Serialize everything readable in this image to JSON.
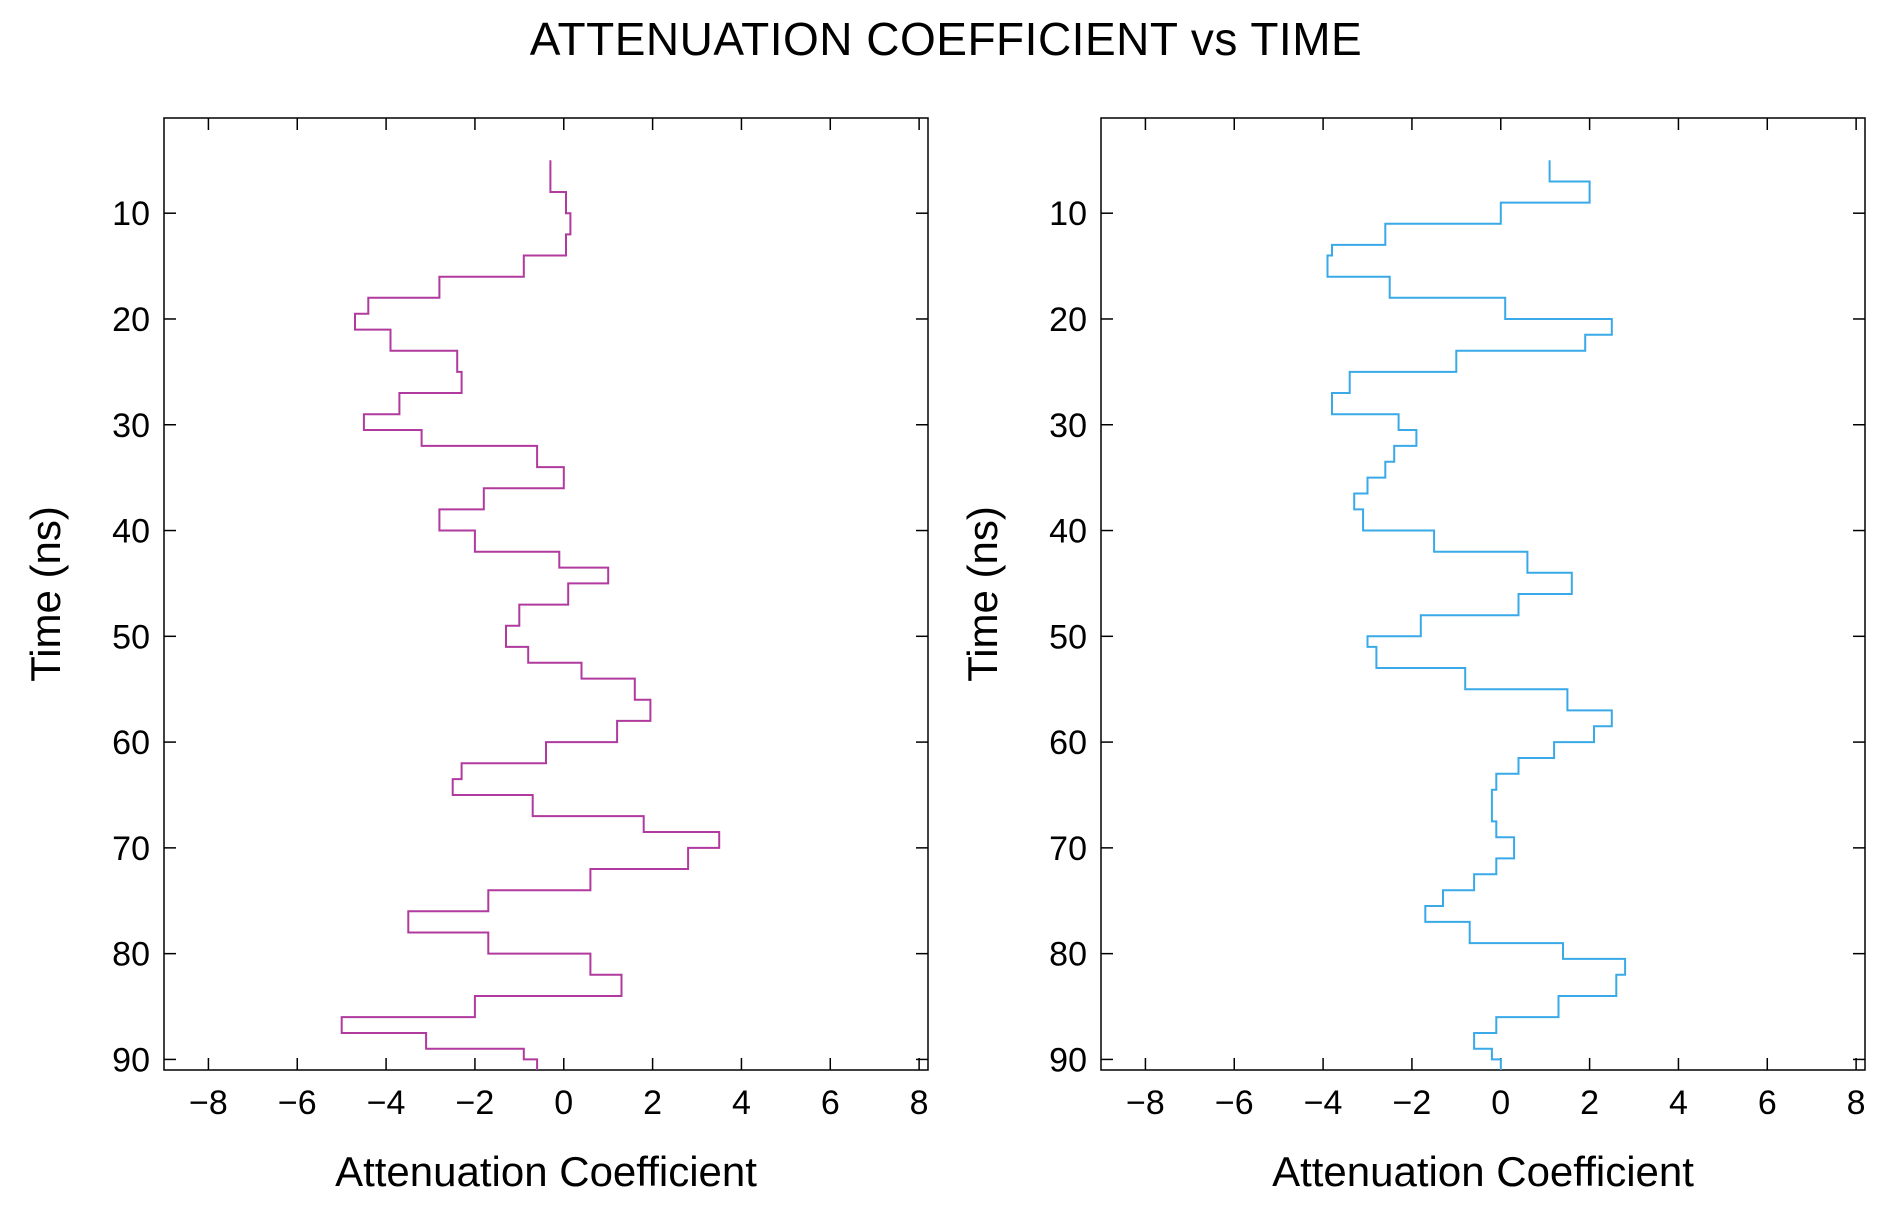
{
  "figure_title": "ATTENUATION COEFFICIENT vs TIME",
  "colors": {
    "left_series": "#b03a9e",
    "right_series": "#39a9e8",
    "axis": "#000000"
  },
  "chart_data": [
    {
      "type": "line",
      "style": "step",
      "xlabel": "Attenuation Coefficient",
      "ylabel": "Time (ns)",
      "xlim": [
        -9,
        8.2
      ],
      "ylim": [
        91,
        1
      ],
      "y_inverted": true,
      "xticks": [
        -8,
        -6,
        -4,
        -2,
        0,
        2,
        4,
        6,
        8
      ],
      "xtick_labels": [
        "−8",
        "−6",
        "−4",
        "−2",
        "0",
        "2",
        "4",
        "6",
        "8"
      ],
      "yticks": [
        10,
        20,
        30,
        40,
        50,
        60,
        70,
        80,
        90
      ],
      "ytick_labels": [
        "10",
        "20",
        "30",
        "40",
        "50",
        "60",
        "70",
        "80",
        "90"
      ],
      "series": [
        {
          "name": "left",
          "color_key": "left_series",
          "points": [
            [
              -0.3,
              5
            ],
            [
              -0.3,
              8
            ],
            [
              0.05,
              8
            ],
            [
              0.05,
              10
            ],
            [
              0.15,
              10
            ],
            [
              0.15,
              12
            ],
            [
              0.05,
              12
            ],
            [
              0.05,
              14
            ],
            [
              -0.9,
              14
            ],
            [
              -0.9,
              16
            ],
            [
              -2.8,
              16
            ],
            [
              -2.8,
              18
            ],
            [
              -4.4,
              18
            ],
            [
              -4.4,
              19.5
            ],
            [
              -4.7,
              19.5
            ],
            [
              -4.7,
              21
            ],
            [
              -3.9,
              21
            ],
            [
              -3.9,
              23
            ],
            [
              -2.4,
              23
            ],
            [
              -2.4,
              25
            ],
            [
              -2.3,
              25
            ],
            [
              -2.3,
              27
            ],
            [
              -3.7,
              27
            ],
            [
              -3.7,
              29
            ],
            [
              -4.5,
              29
            ],
            [
              -4.5,
              30.5
            ],
            [
              -3.2,
              30.5
            ],
            [
              -3.2,
              32
            ],
            [
              -0.6,
              32
            ],
            [
              -0.6,
              34
            ],
            [
              0,
              34
            ],
            [
              0,
              36
            ],
            [
              -1.8,
              36
            ],
            [
              -1.8,
              38
            ],
            [
              -2.8,
              38
            ],
            [
              -2.8,
              40
            ],
            [
              -2,
              40
            ],
            [
              -2,
              42
            ],
            [
              -0.1,
              42
            ],
            [
              -0.1,
              43.5
            ],
            [
              1,
              43.5
            ],
            [
              1,
              45
            ],
            [
              0.1,
              45
            ],
            [
              0.1,
              47
            ],
            [
              -1,
              47
            ],
            [
              -1,
              49
            ],
            [
              -1.3,
              49
            ],
            [
              -1.3,
              51
            ],
            [
              -0.8,
              51
            ],
            [
              -0.8,
              52.5
            ],
            [
              0.4,
              52.5
            ],
            [
              0.4,
              54
            ],
            [
              1.6,
              54
            ],
            [
              1.6,
              56
            ],
            [
              1.95,
              56
            ],
            [
              1.95,
              58
            ],
            [
              1.2,
              58
            ],
            [
              1.2,
              60
            ],
            [
              -0.4,
              60
            ],
            [
              -0.4,
              62
            ],
            [
              -2.3,
              62
            ],
            [
              -2.3,
              63.5
            ],
            [
              -2.5,
              63.5
            ],
            [
              -2.5,
              65
            ],
            [
              -0.7,
              65
            ],
            [
              -0.7,
              67
            ],
            [
              1.8,
              67
            ],
            [
              1.8,
              68.5
            ],
            [
              3.5,
              68.5
            ],
            [
              3.5,
              70
            ],
            [
              2.8,
              70
            ],
            [
              2.8,
              72
            ],
            [
              0.6,
              72
            ],
            [
              0.6,
              74
            ],
            [
              -1.7,
              74
            ],
            [
              -1.7,
              76
            ],
            [
              -3.5,
              76
            ],
            [
              -3.5,
              78
            ],
            [
              -1.7,
              78
            ],
            [
              -1.7,
              80
            ],
            [
              0.6,
              80
            ],
            [
              0.6,
              82
            ],
            [
              1.3,
              82
            ],
            [
              1.3,
              84
            ],
            [
              -2,
              84
            ],
            [
              -2,
              86
            ],
            [
              -5,
              86
            ],
            [
              -5,
              87.5
            ],
            [
              -3.1,
              87.5
            ],
            [
              -3.1,
              89
            ],
            [
              -0.9,
              89
            ],
            [
              -0.9,
              90
            ],
            [
              -0.6,
              90
            ],
            [
              -0.6,
              91
            ]
          ]
        }
      ]
    },
    {
      "type": "line",
      "style": "step",
      "xlabel": "Attenuation Coefficient",
      "ylabel": "Time (ns)",
      "xlim": [
        -9,
        8.2
      ],
      "ylim": [
        91,
        1
      ],
      "y_inverted": true,
      "xticks": [
        -8,
        -6,
        -4,
        -2,
        0,
        2,
        4,
        6,
        8
      ],
      "xtick_labels": [
        "−8",
        "−6",
        "−4",
        "−2",
        "0",
        "2",
        "4",
        "6",
        "8"
      ],
      "yticks": [
        10,
        20,
        30,
        40,
        50,
        60,
        70,
        80,
        90
      ],
      "ytick_labels": [
        "10",
        "20",
        "30",
        "40",
        "50",
        "60",
        "70",
        "80",
        "90"
      ],
      "series": [
        {
          "name": "right",
          "color_key": "right_series",
          "points": [
            [
              1.1,
              5
            ],
            [
              1.1,
              7
            ],
            [
              2,
              7
            ],
            [
              2,
              9
            ],
            [
              0,
              9
            ],
            [
              0,
              11
            ],
            [
              -2.6,
              11
            ],
            [
              -2.6,
              13
            ],
            [
              -3.8,
              13
            ],
            [
              -3.8,
              14
            ],
            [
              -3.9,
              14
            ],
            [
              -3.9,
              16
            ],
            [
              -2.5,
              16
            ],
            [
              -2.5,
              18
            ],
            [
              0.1,
              18
            ],
            [
              0.1,
              20
            ],
            [
              2.5,
              20
            ],
            [
              2.5,
              21.5
            ],
            [
              1.9,
              21.5
            ],
            [
              1.9,
              23
            ],
            [
              -1,
              23
            ],
            [
              -1,
              25
            ],
            [
              -3.4,
              25
            ],
            [
              -3.4,
              27
            ],
            [
              -3.8,
              27
            ],
            [
              -3.8,
              29
            ],
            [
              -2.3,
              29
            ],
            [
              -2.3,
              30.5
            ],
            [
              -1.9,
              30.5
            ],
            [
              -1.9,
              32
            ],
            [
              -2.4,
              32
            ],
            [
              -2.4,
              33.5
            ],
            [
              -2.6,
              33.5
            ],
            [
              -2.6,
              35
            ],
            [
              -3,
              35
            ],
            [
              -3,
              36.5
            ],
            [
              -3.3,
              36.5
            ],
            [
              -3.3,
              38
            ],
            [
              -3.1,
              38
            ],
            [
              -3.1,
              40
            ],
            [
              -1.5,
              40
            ],
            [
              -1.5,
              42
            ],
            [
              0.6,
              42
            ],
            [
              0.6,
              44
            ],
            [
              1.6,
              44
            ],
            [
              1.6,
              46
            ],
            [
              0.4,
              46
            ],
            [
              0.4,
              48
            ],
            [
              -1.8,
              48
            ],
            [
              -1.8,
              50
            ],
            [
              -3,
              50
            ],
            [
              -3,
              51
            ],
            [
              -2.8,
              51
            ],
            [
              -2.8,
              53
            ],
            [
              -0.8,
              53
            ],
            [
              -0.8,
              55
            ],
            [
              1.5,
              55
            ],
            [
              1.5,
              57
            ],
            [
              2.5,
              57
            ],
            [
              2.5,
              58.5
            ],
            [
              2.1,
              58.5
            ],
            [
              2.1,
              60
            ],
            [
              1.2,
              60
            ],
            [
              1.2,
              61.5
            ],
            [
              0.4,
              61.5
            ],
            [
              0.4,
              63
            ],
            [
              -0.1,
              63
            ],
            [
              -0.1,
              64.5
            ],
            [
              -0.2,
              64.5
            ],
            [
              -0.2,
              66
            ],
            [
              -0.2,
              66
            ],
            [
              -0.2,
              67.5
            ],
            [
              -0.1,
              67.5
            ],
            [
              -0.1,
              69
            ],
            [
              0.3,
              69
            ],
            [
              0.3,
              71
            ],
            [
              -0.1,
              71
            ],
            [
              -0.1,
              72.5
            ],
            [
              -0.6,
              72.5
            ],
            [
              -0.6,
              74
            ],
            [
              -1.3,
              74
            ],
            [
              -1.3,
              75.5
            ],
            [
              -1.7,
              75.5
            ],
            [
              -1.7,
              77
            ],
            [
              -0.7,
              77
            ],
            [
              -0.7,
              79
            ],
            [
              1.4,
              79
            ],
            [
              1.4,
              80.5
            ],
            [
              2.8,
              80.5
            ],
            [
              2.8,
              82
            ],
            [
              2.6,
              82
            ],
            [
              2.6,
              84
            ],
            [
              1.3,
              84
            ],
            [
              1.3,
              86
            ],
            [
              -0.1,
              86
            ],
            [
              -0.1,
              87.5
            ],
            [
              -0.6,
              87.5
            ],
            [
              -0.6,
              89
            ],
            [
              -0.2,
              89
            ],
            [
              -0.2,
              90
            ],
            [
              0,
              90
            ],
            [
              0,
              91
            ]
          ]
        }
      ]
    }
  ]
}
